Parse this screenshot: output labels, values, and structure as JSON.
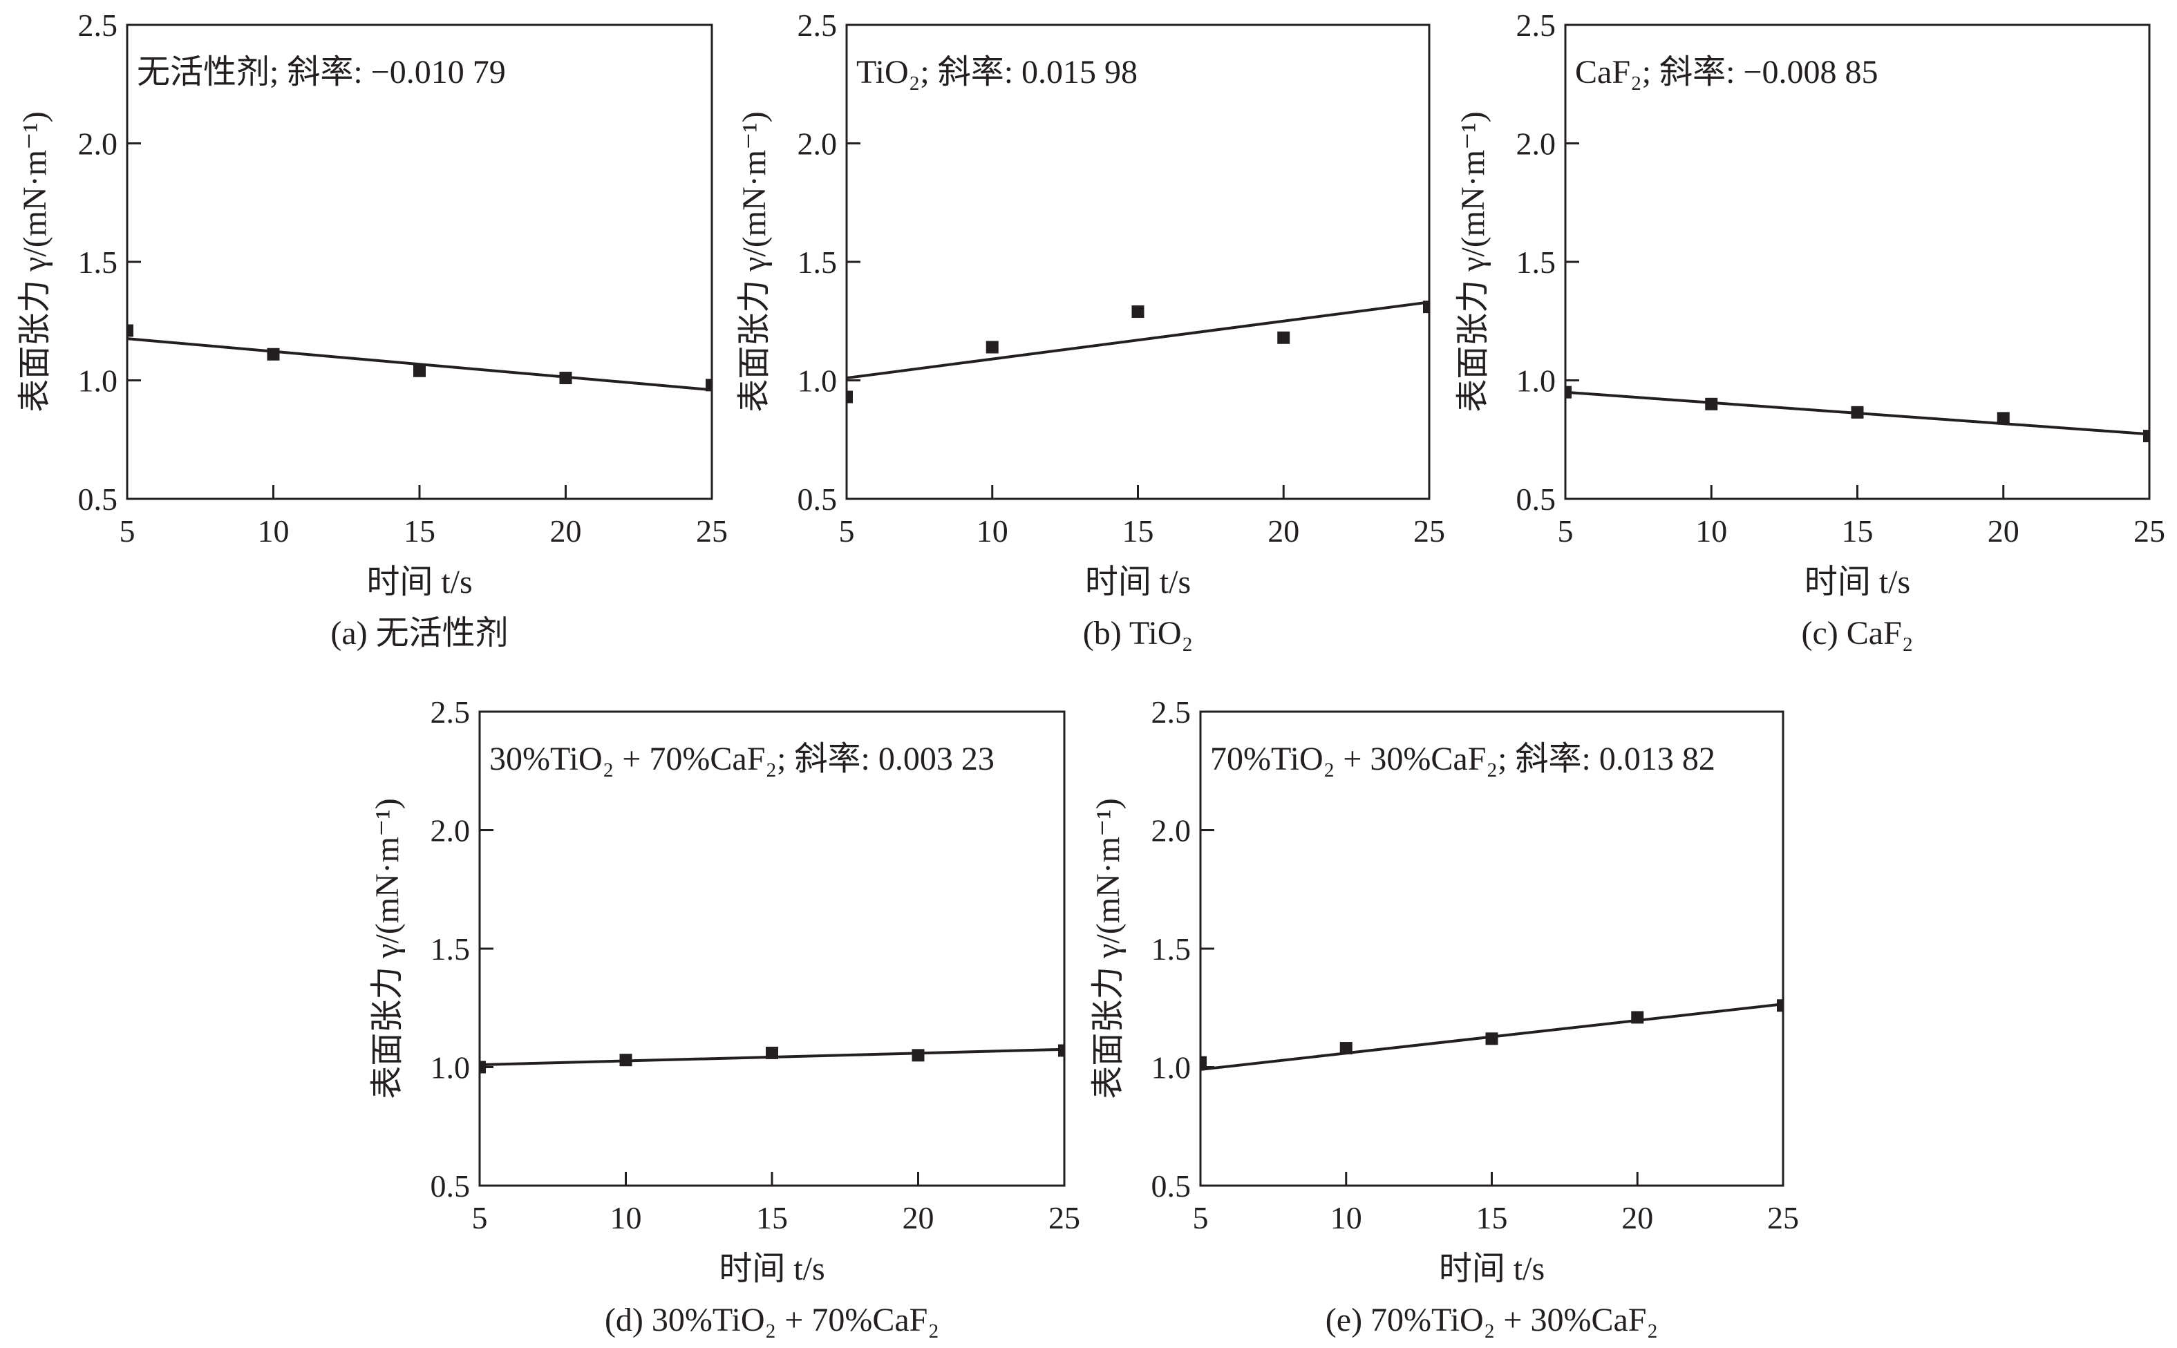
{
  "chart_data": [
    {
      "type": "scatter",
      "id": "a",
      "annotation": "无活性剂; 斜率: −0.010 79",
      "caption": "(a) 无活性剂",
      "xlabel": "时间 t/s",
      "ylabel": "表面张力 γ/(mN·m⁻¹)",
      "xlim": [
        5,
        25
      ],
      "ylim": [
        0.5,
        2.5
      ],
      "xticks": [
        "5",
        "10",
        "15",
        "20",
        "25"
      ],
      "yticks": [
        "0.5",
        "1.0",
        "1.5",
        "2.0",
        "2.5"
      ],
      "x": [
        5,
        10,
        15,
        20,
        25
      ],
      "y": [
        1.21,
        1.11,
        1.04,
        1.01,
        0.98
      ],
      "fit": {
        "slope": -0.01079,
        "y_at_5": 1.176,
        "y_at_25": 0.96
      }
    },
    {
      "type": "scatter",
      "id": "b",
      "annotation": "TiO₂; 斜率: 0.015 98",
      "caption": "(b) TiO₂",
      "xlabel": "时间 t/s",
      "ylabel": "表面张力 γ/(mN·m⁻¹)",
      "xlim": [
        5,
        25
      ],
      "ylim": [
        0.5,
        2.5
      ],
      "xticks": [
        "5",
        "10",
        "15",
        "20",
        "25"
      ],
      "yticks": [
        "0.5",
        "1.0",
        "1.5",
        "2.0",
        "2.5"
      ],
      "x": [
        5,
        10,
        15,
        20,
        25
      ],
      "y": [
        0.93,
        1.14,
        1.29,
        1.18,
        1.31
      ],
      "fit": {
        "slope": 0.01598,
        "y_at_5": 1.01,
        "y_at_25": 1.33
      }
    },
    {
      "type": "scatter",
      "id": "c",
      "annotation": "CaF₂; 斜率: −0.008 85",
      "caption": "(c) CaF₂",
      "xlabel": "时间 t/s",
      "ylabel": "表面张力 γ/(mN·m⁻¹)",
      "xlim": [
        5,
        25
      ],
      "ylim": [
        0.5,
        2.5
      ],
      "xticks": [
        "5",
        "10",
        "15",
        "20",
        "25"
      ],
      "yticks": [
        "0.5",
        "1.0",
        "1.5",
        "2.0",
        "2.5"
      ],
      "x": [
        5,
        10,
        15,
        20,
        25
      ],
      "y": [
        0.95,
        0.9,
        0.865,
        0.84,
        0.765
      ],
      "fit": {
        "slope": -0.00885,
        "y_at_5": 0.95,
        "y_at_25": 0.773
      }
    },
    {
      "type": "scatter",
      "id": "d",
      "annotation": "30%TiO₂ + 70%CaF₂; 斜率: 0.003 23",
      "caption": "(d) 30%TiO₂ + 70%CaF₂",
      "xlabel": "时间 t/s",
      "ylabel": "表面张力 γ/(mN·m⁻¹)",
      "xlim": [
        5,
        25
      ],
      "ylim": [
        0.5,
        2.5
      ],
      "xticks": [
        "5",
        "10",
        "15",
        "20",
        "25"
      ],
      "yticks": [
        "0.5",
        "1.0",
        "1.5",
        "2.0",
        "2.5"
      ],
      "x": [
        5,
        10,
        15,
        20,
        25
      ],
      "y": [
        1.0,
        1.03,
        1.06,
        1.05,
        1.07
      ],
      "fit": {
        "slope": 0.00323,
        "y_at_5": 1.01,
        "y_at_25": 1.075
      }
    },
    {
      "type": "scatter",
      "id": "e",
      "annotation": "70%TiO₂ + 30%CaF₂; 斜率: 0.013 82",
      "caption": "(e) 70%TiO₂ + 30%CaF₂",
      "xlabel": "时间 t/s",
      "ylabel": "表面张力 γ/(mN·m⁻¹)",
      "xlim": [
        5,
        25
      ],
      "ylim": [
        0.5,
        2.5
      ],
      "xticks": [
        "5",
        "10",
        "15",
        "20",
        "25"
      ],
      "yticks": [
        "0.5",
        "1.0",
        "1.5",
        "2.0",
        "2.5"
      ],
      "x": [
        5,
        10,
        15,
        20,
        25
      ],
      "y": [
        1.02,
        1.08,
        1.12,
        1.21,
        1.26
      ],
      "fit": {
        "slope": 0.01382,
        "y_at_5": 0.99,
        "y_at_25": 1.266
      }
    }
  ]
}
